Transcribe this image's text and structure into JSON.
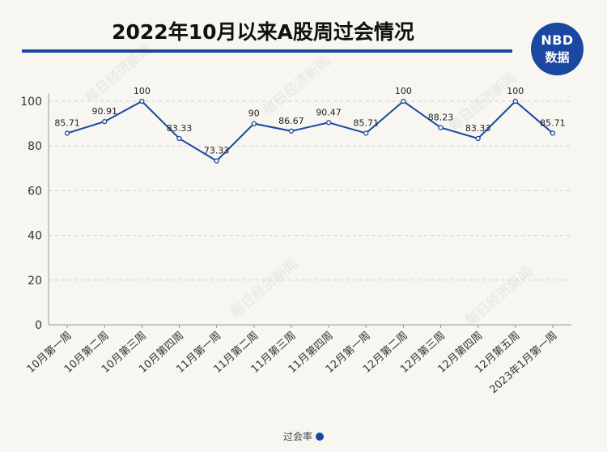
{
  "header": {
    "title": "2022年10月以来A股周过会情况",
    "logo_line1": "NBD",
    "logo_line2": "数据",
    "watermark": "每日经济新闻"
  },
  "colors": {
    "accent": "#1a47a0",
    "background": "#f8f6f1",
    "grid": "#cfcfcf"
  },
  "chart_data": {
    "type": "line",
    "categories": [
      "10月第一周",
      "10月第二周",
      "10月第三周",
      "10月第四周",
      "11月第一周",
      "11月第二周",
      "11月第三周",
      "11月第四周",
      "12月第一周",
      "12月第二周",
      "12月第三周",
      "12月第四周",
      "12月第五周",
      "2023年1月第一周"
    ],
    "series": [
      {
        "name": "过会率",
        "values": [
          85.71,
          90.91,
          100,
          83.33,
          73.33,
          90,
          86.67,
          90.47,
          85.71,
          100,
          88.23,
          83.33,
          100,
          85.71
        ]
      }
    ],
    "data_labels": [
      "85.71",
      "90.91",
      "100",
      "83.33",
      "73.33",
      "90",
      "86.67",
      "90.47",
      "85.71",
      "100",
      "88.23",
      "83.33",
      "100",
      "85.71"
    ],
    "ylim": [
      0,
      100
    ],
    "yticks": [
      "0",
      "20",
      "40",
      "60",
      "80",
      "100"
    ],
    "grid": true,
    "legend_position": "bottom-center"
  },
  "legend": {
    "label": "过会率"
  }
}
